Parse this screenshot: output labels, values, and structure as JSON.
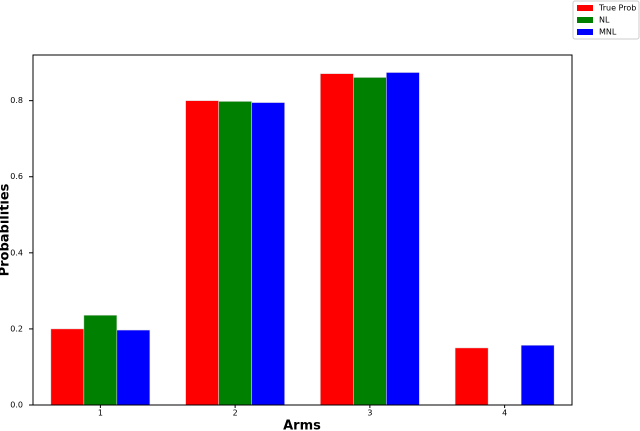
{
  "chart_data": {
    "type": "bar",
    "x_label": "Arms",
    "y_label": "Probabilities",
    "categories": [
      "1",
      "2",
      "3",
      "4"
    ],
    "series": [
      {
        "name": "True Prob",
        "color": "#ff0000",
        "values": [
          0.2,
          0.8,
          0.871,
          0.15
        ]
      },
      {
        "name": "NL",
        "color": "#008000",
        "values": [
          0.236,
          0.798,
          0.861,
          null
        ]
      },
      {
        "name": "MNL",
        "color": "#0000ff",
        "values": [
          0.197,
          0.795,
          0.874,
          0.157
        ]
      }
    ],
    "ylim": [
      0,
      0.92
    ],
    "yticks": [
      {
        "value": 0,
        "label": "0.0"
      },
      0.2,
      0.4,
      0.6,
      0.8
    ],
    "grid": false,
    "legend": "upper right"
  }
}
